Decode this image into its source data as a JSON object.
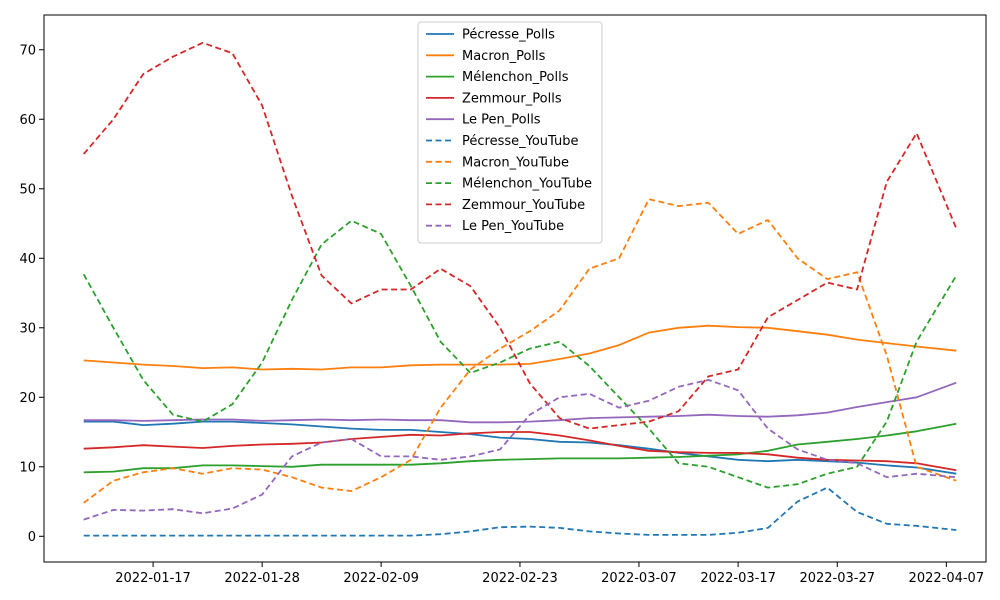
{
  "chart_data": {
    "type": "line",
    "title": "",
    "xlabel": "",
    "ylabel": "",
    "x": [
      "2022-01-10",
      "2022-01-13",
      "2022-01-16",
      "2022-01-19",
      "2022-01-22",
      "2022-01-25",
      "2022-01-28",
      "2022-01-31",
      "2022-02-03",
      "2022-02-06",
      "2022-02-09",
      "2022-02-12",
      "2022-02-15",
      "2022-02-18",
      "2022-02-21",
      "2022-02-24",
      "2022-02-27",
      "2022-03-02",
      "2022-03-05",
      "2022-03-08",
      "2022-03-11",
      "2022-03-14",
      "2022-03-17",
      "2022-03-20",
      "2022-03-23",
      "2022-03-26",
      "2022-03-29",
      "2022-04-01",
      "2022-04-04",
      "2022-04-08"
    ],
    "x_ticks": [
      "2022-01-17",
      "2022-01-28",
      "2022-02-09",
      "2022-02-23",
      "2022-03-07",
      "2022-03-17",
      "2022-03-27",
      "2022-04-07"
    ],
    "y_ticks": [
      0,
      10,
      20,
      30,
      40,
      50,
      60,
      70
    ],
    "xlim": [
      "2022-01-06",
      "2022-04-11"
    ],
    "ylim": [
      -3.7,
      75
    ],
    "grid": false,
    "legend": "top-center",
    "series": [
      {
        "name": "Pécresse_Polls",
        "color": "#1f77b4",
        "dash": "solid",
        "values": [
          16.5,
          16.5,
          16.0,
          16.2,
          16.5,
          16.5,
          16.3,
          16.1,
          15.8,
          15.5,
          15.3,
          15.3,
          15.0,
          14.7,
          14.2,
          14.0,
          13.6,
          13.5,
          13.1,
          12.6,
          12.0,
          11.5,
          11.0,
          10.8,
          11.0,
          10.8,
          10.6,
          10.2,
          9.9,
          9.0
        ]
      },
      {
        "name": "Macron_Polls",
        "color": "#ff7f0e",
        "dash": "solid",
        "values": [
          25.3,
          25.0,
          24.7,
          24.5,
          24.2,
          24.3,
          24.0,
          24.1,
          24.0,
          24.3,
          24.3,
          24.6,
          24.7,
          24.7,
          24.7,
          24.8,
          25.5,
          26.3,
          27.5,
          29.3,
          30.0,
          30.3,
          30.1,
          30.0,
          29.5,
          29.0,
          28.3,
          27.8,
          27.3,
          26.7
        ]
      },
      {
        "name": "Mélenchon_Polls",
        "color": "#2ca02c",
        "dash": "solid",
        "values": [
          9.2,
          9.3,
          9.8,
          9.8,
          10.2,
          10.2,
          10.1,
          10.0,
          10.3,
          10.3,
          10.3,
          10.3,
          10.5,
          10.8,
          11.0,
          11.1,
          11.2,
          11.2,
          11.2,
          11.3,
          11.4,
          11.6,
          11.8,
          12.3,
          13.2,
          13.6,
          14.0,
          14.5,
          15.1,
          16.2
        ]
      },
      {
        "name": "Zemmour_Polls",
        "color": "#d62728",
        "dash": "solid",
        "values": [
          12.6,
          12.8,
          13.1,
          12.9,
          12.7,
          13.0,
          13.2,
          13.3,
          13.5,
          14.0,
          14.3,
          14.6,
          14.5,
          14.8,
          15.0,
          15.0,
          14.5,
          13.8,
          13.0,
          12.3,
          12.1,
          12.0,
          12.0,
          11.8,
          11.3,
          11.0,
          10.9,
          10.8,
          10.5,
          9.5
        ]
      },
      {
        "name": "Le Pen_Polls",
        "color": "#9467bd",
        "dash": "solid",
        "values": [
          16.7,
          16.7,
          16.6,
          16.7,
          16.8,
          16.8,
          16.6,
          16.7,
          16.8,
          16.7,
          16.8,
          16.7,
          16.7,
          16.4,
          16.4,
          16.5,
          16.7,
          17.0,
          17.1,
          17.2,
          17.3,
          17.5,
          17.3,
          17.2,
          17.4,
          17.8,
          18.6,
          19.3,
          20.0,
          22.1
        ]
      },
      {
        "name": "Pécresse_YouTube",
        "color": "#1f77b4",
        "dash": "dashed",
        "values": [
          0.1,
          0.1,
          0.1,
          0.1,
          0.1,
          0.1,
          0.1,
          0.1,
          0.1,
          0.1,
          0.1,
          0.1,
          0.3,
          0.7,
          1.3,
          1.4,
          1.2,
          0.7,
          0.4,
          0.2,
          0.2,
          0.2,
          0.5,
          1.2,
          5.0,
          7.0,
          3.5,
          1.8,
          1.5,
          0.9
        ]
      },
      {
        "name": "Macron_YouTube",
        "color": "#ff7f0e",
        "dash": "dashed",
        "values": [
          4.8,
          8.0,
          9.2,
          9.8,
          9.0,
          9.8,
          9.6,
          8.5,
          7.0,
          6.5,
          8.5,
          11.0,
          18.5,
          24.0,
          27.0,
          29.5,
          32.5,
          38.5,
          40.0,
          48.5,
          47.5,
          48.0,
          43.5,
          45.5,
          40.0,
          37.0,
          38.0,
          26.0,
          10.0,
          8.0
        ]
      },
      {
        "name": "Mélenchon_YouTube",
        "color": "#2ca02c",
        "dash": "dashed",
        "values": [
          37.7,
          30.0,
          22.5,
          17.5,
          16.5,
          19.0,
          25.0,
          34.0,
          42.0,
          45.4,
          43.5,
          36.0,
          28.0,
          23.5,
          25.0,
          27.0,
          28.0,
          24.5,
          20.0,
          15.5,
          10.5,
          10.0,
          8.5,
          7.0,
          7.5,
          9.0,
          10.0,
          16.5,
          28.0,
          37.5
        ]
      },
      {
        "name": "Zemmour_YouTube",
        "color": "#d62728",
        "dash": "dashed",
        "values": [
          55.0,
          60.0,
          66.5,
          69.0,
          71.0,
          69.5,
          62.0,
          49.0,
          37.5,
          33.5,
          35.5,
          35.5,
          38.5,
          36.0,
          30.0,
          22.0,
          17.0,
          15.5,
          16.0,
          16.5,
          18.0,
          23.0,
          24.0,
          31.5,
          34.0,
          36.5,
          35.5,
          51.0,
          58.0,
          44.3
        ]
      },
      {
        "name": "Le Pen_YouTube",
        "color": "#9467bd",
        "dash": "dashed",
        "values": [
          2.4,
          3.8,
          3.7,
          3.9,
          3.3,
          4.0,
          6.0,
          11.5,
          13.5,
          14.0,
          11.5,
          11.5,
          11.0,
          11.5,
          12.5,
          17.5,
          20.0,
          20.5,
          18.5,
          19.5,
          21.5,
          22.5,
          21.0,
          15.5,
          12.5,
          11.0,
          10.5,
          8.5,
          9.0,
          8.5
        ]
      }
    ]
  }
}
